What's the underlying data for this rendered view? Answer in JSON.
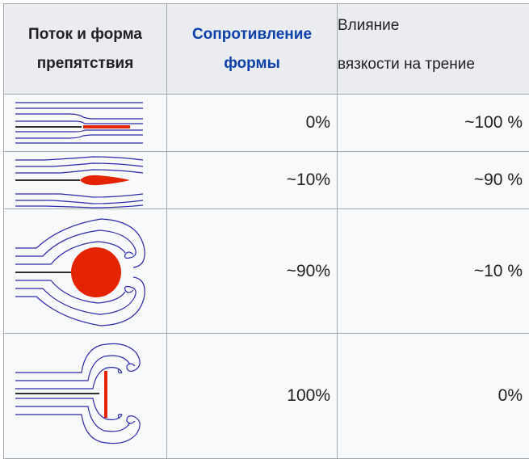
{
  "headers": {
    "col1": "Поток и форма препятствия",
    "col2": "Сопротивление формы",
    "col3_line1": "Влияние",
    "col3_line2": "вязкости на трение"
  },
  "rows": [
    {
      "shape": "flat-plate-parallel",
      "form_drag": "0%",
      "friction": "~100 %"
    },
    {
      "shape": "streamlined-body",
      "form_drag": "~10%",
      "friction": "~90 %"
    },
    {
      "shape": "sphere",
      "form_drag": "~90%",
      "friction": "~10 %"
    },
    {
      "shape": "flat-plate-perpendicular",
      "form_drag": "100%",
      "friction": "0%"
    }
  ],
  "colors": {
    "header_bg": "#eaecf0",
    "cell_bg": "#f8f9fa",
    "border": "#a2a9b1",
    "link": "#0b41a8",
    "streamline": "#2a2aa8",
    "body": "#e42400"
  }
}
